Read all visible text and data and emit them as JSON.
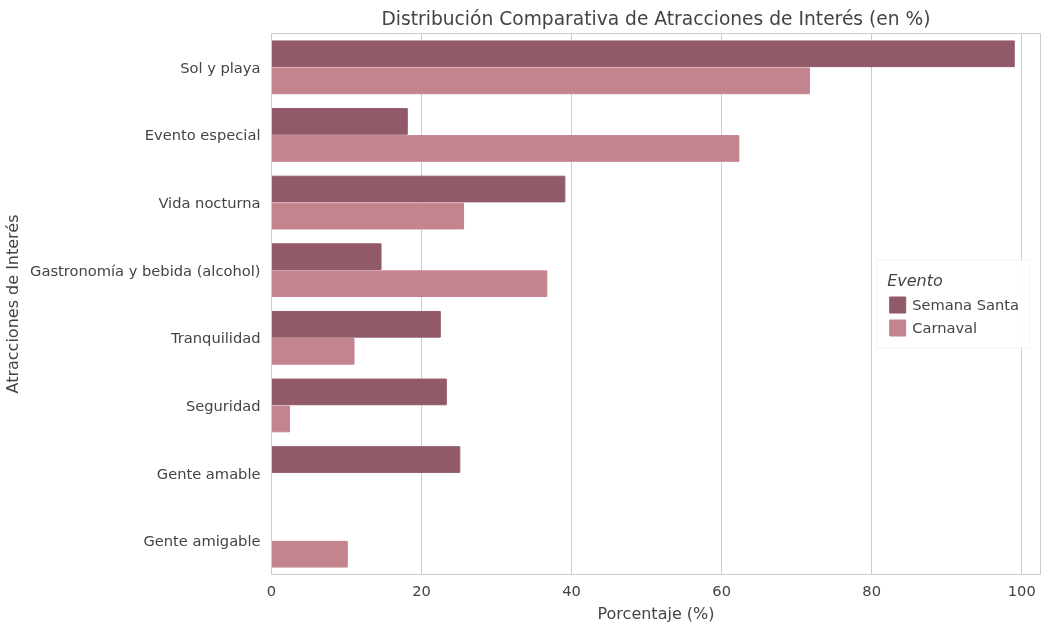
{
  "chart_data": {
    "type": "bar",
    "orientation": "horizontal",
    "title": "Distribución Comparativa de Atracciones de Interés (en %)",
    "xlabel": "Porcentaje (%)",
    "ylabel": "Atracciones de Interés",
    "legend_title": "Evento",
    "categories": [
      "Sol y playa",
      "Evento especial",
      "Vida nocturna",
      "Gastronomía y bebida (alcohol)",
      "Tranquilidad",
      "Seguridad",
      "Gente amable",
      "Gente amigable"
    ],
    "series": [
      {
        "name": "Semana Santa",
        "color": "#925a68",
        "values": [
          99.0,
          18.1,
          39.1,
          14.6,
          22.5,
          23.3,
          25.1,
          null
        ]
      },
      {
        "name": "Carnaval",
        "color": "#c4848f",
        "values": [
          71.7,
          62.3,
          25.6,
          36.7,
          11.0,
          2.4,
          null,
          10.1
        ]
      }
    ],
    "xlim": [
      0,
      102.5
    ],
    "xticks": [
      0,
      20,
      40,
      60,
      80,
      100
    ],
    "grid": "x",
    "legend": "right"
  }
}
